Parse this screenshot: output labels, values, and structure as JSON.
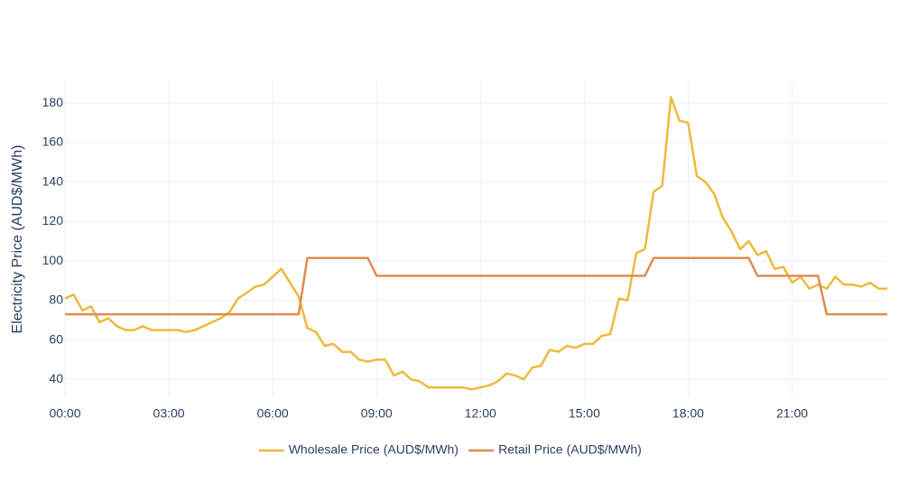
{
  "chart_data": {
    "type": "line",
    "y_label": "Electricity Price (AUD$/MWh)",
    "x": [
      0,
      0.25,
      0.5,
      0.75,
      1,
      1.25,
      1.5,
      1.75,
      2,
      2.25,
      2.5,
      2.75,
      3,
      3.25,
      3.5,
      3.75,
      4,
      4.25,
      4.5,
      4.75,
      5,
      5.25,
      5.5,
      5.75,
      6,
      6.25,
      6.5,
      6.75,
      7,
      7.25,
      7.5,
      7.75,
      8,
      8.25,
      8.5,
      8.75,
      9,
      9.25,
      9.5,
      9.75,
      10,
      10.25,
      10.5,
      10.75,
      11,
      11.25,
      11.5,
      11.75,
      12,
      12.25,
      12.5,
      12.75,
      13,
      13.25,
      13.5,
      13.75,
      14,
      14.25,
      14.5,
      14.75,
      15,
      15.25,
      15.5,
      15.75,
      16,
      16.25,
      16.5,
      16.75,
      17,
      17.25,
      17.5,
      17.75,
      18,
      18.25,
      18.5,
      18.75,
      19,
      19.25,
      19.5,
      19.75,
      20,
      20.25,
      20.5,
      20.75,
      21,
      21.25,
      21.5,
      21.75,
      22,
      22.25,
      22.5,
      22.75,
      23,
      23.25,
      23.5,
      23.75
    ],
    "series": [
      {
        "name": "Wholesale Price (AUD$/MWh)",
        "color": "#f0b93b",
        "values": [
          81,
          83,
          75,
          77,
          69,
          71,
          67,
          65,
          65,
          67,
          65,
          65,
          65,
          65,
          64,
          65,
          67,
          69,
          71,
          74,
          81,
          84,
          87,
          88,
          92,
          96,
          89,
          82,
          66,
          64,
          57,
          58,
          54,
          54,
          50,
          49,
          50,
          50,
          42,
          44,
          40,
          39,
          36,
          36,
          36,
          36,
          36,
          35,
          36,
          37,
          39,
          43,
          42,
          40,
          46,
          47,
          55,
          54,
          57,
          56,
          58,
          58,
          62,
          63,
          81,
          80,
          104,
          106,
          135,
          138,
          183,
          171,
          170,
          143,
          140,
          134,
          122,
          115,
          106,
          110,
          103,
          105,
          96,
          97,
          89,
          92,
          86,
          88,
          86,
          92,
          88,
          88,
          87,
          89,
          86,
          86
        ]
      },
      {
        "name": "Retail Price (AUD$/MWh)",
        "color": "#e08d4f",
        "values": [
          73,
          73,
          73,
          73,
          73,
          73,
          73,
          73,
          73,
          73,
          73,
          73,
          73,
          73,
          73,
          73,
          73,
          73,
          73,
          73,
          73,
          73,
          73,
          73,
          73,
          73,
          73,
          73,
          101.5,
          101.5,
          101.5,
          101.5,
          101.5,
          101.5,
          101.5,
          101.5,
          92.5,
          92.5,
          92.5,
          92.5,
          92.5,
          92.5,
          92.5,
          92.5,
          92.5,
          92.5,
          92.5,
          92.5,
          92.5,
          92.5,
          92.5,
          92.5,
          92.5,
          92.5,
          92.5,
          92.5,
          92.5,
          92.5,
          92.5,
          92.5,
          92.5,
          92.5,
          92.5,
          92.5,
          92.5,
          92.5,
          92.5,
          92.5,
          101.5,
          101.5,
          101.5,
          101.5,
          101.5,
          101.5,
          101.5,
          101.5,
          101.5,
          101.5,
          101.5,
          101.5,
          92.5,
          92.5,
          92.5,
          92.5,
          92.5,
          92.5,
          92.5,
          92.5,
          73,
          73,
          73,
          73,
          73,
          73,
          73,
          73
        ]
      }
    ],
    "xlim": [
      0,
      23.75
    ],
    "xticks": [
      {
        "value": 0,
        "label": "00:00"
      },
      {
        "value": 3,
        "label": "03:00"
      },
      {
        "value": 6,
        "label": "06:00"
      },
      {
        "value": 9,
        "label": "09:00"
      },
      {
        "value": 12,
        "label": "12:00"
      },
      {
        "value": 15,
        "label": "15:00"
      },
      {
        "value": 18,
        "label": "18:00"
      },
      {
        "value": 21,
        "label": "21:00"
      }
    ],
    "ylim": [
      31,
      191
    ],
    "yticks": [
      40,
      60,
      80,
      100,
      120,
      140,
      160,
      180
    ],
    "grid": true
  }
}
